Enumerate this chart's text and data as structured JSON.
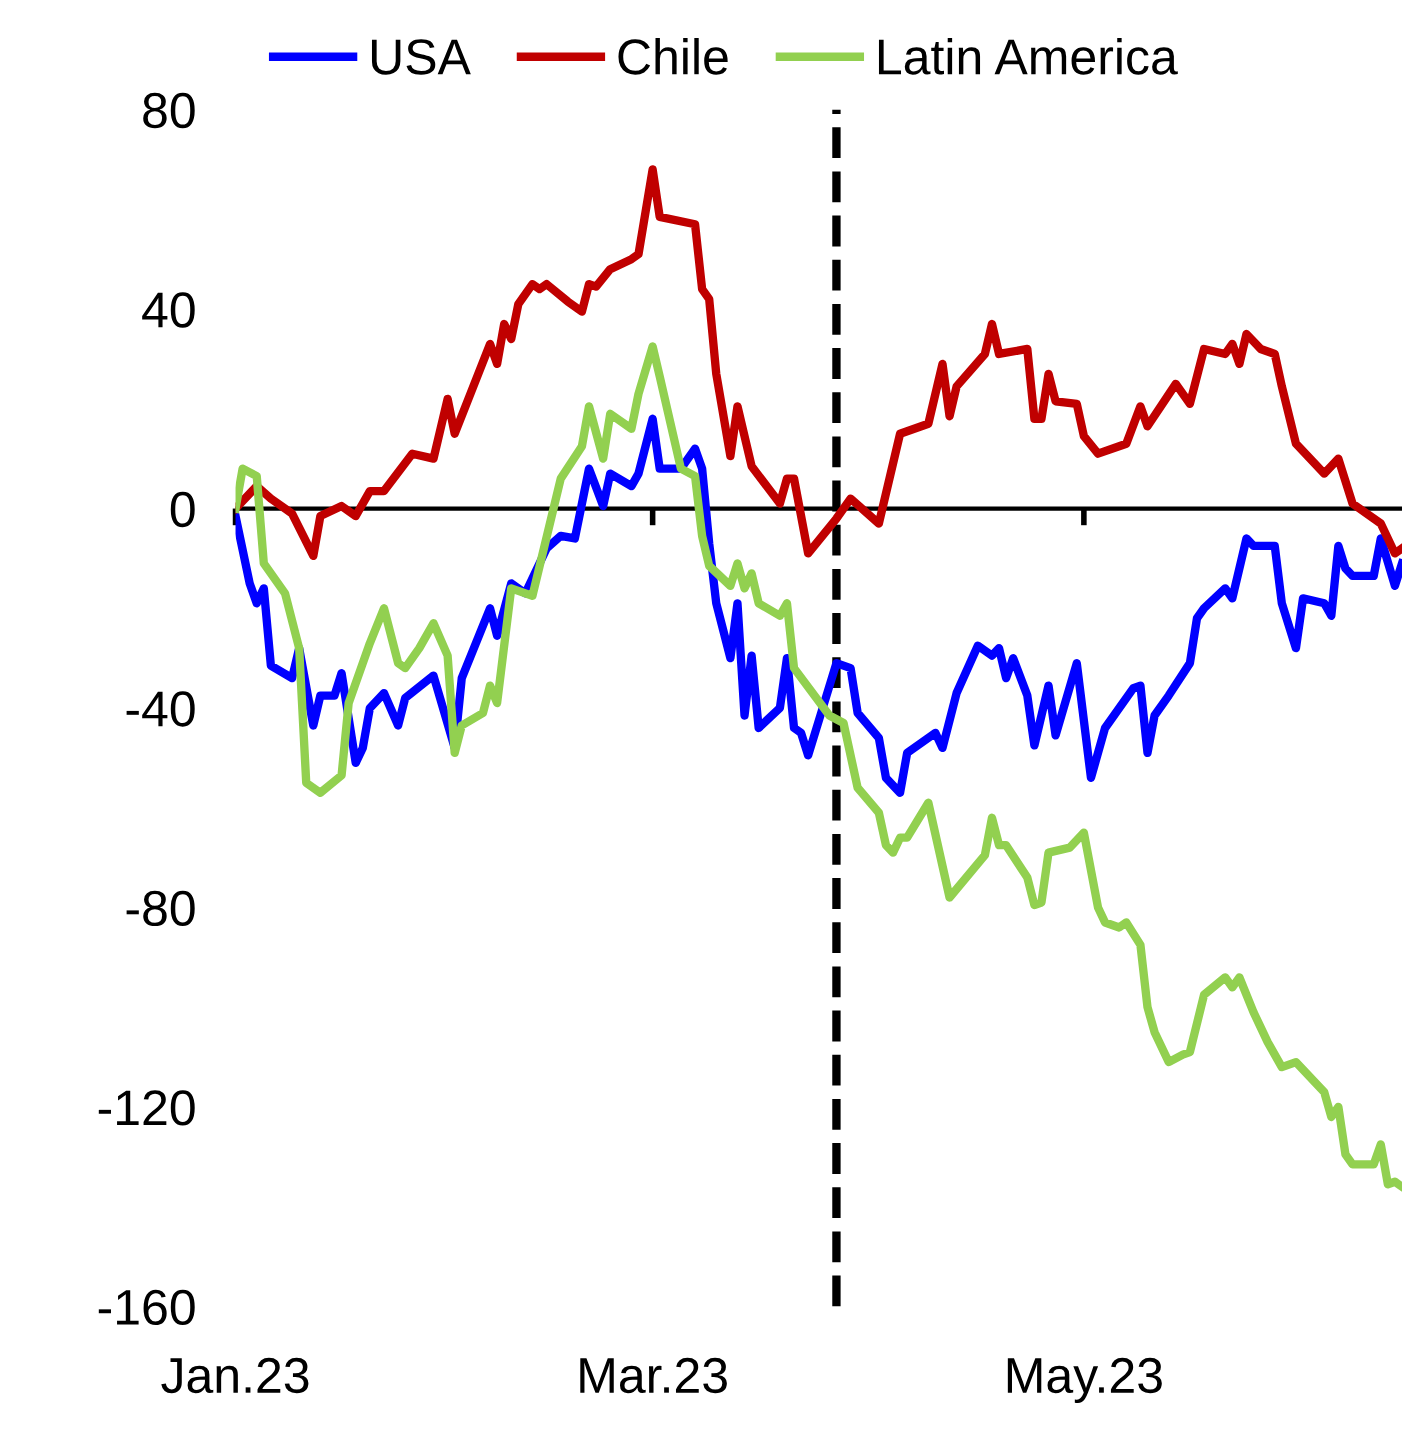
{
  "chart_data": {
    "type": "line",
    "series": [
      {
        "name": "USA",
        "color": "#0000ff",
        "x": [
          "2023-01-01",
          "2023-01-03",
          "2023-01-04",
          "2023-01-05",
          "2023-01-06",
          "2023-01-09",
          "2023-01-10",
          "2023-01-12",
          "2023-01-13",
          "2023-01-15",
          "2023-01-16",
          "2023-01-18",
          "2023-01-19",
          "2023-01-20",
          "2023-01-22",
          "2023-01-24",
          "2023-01-25",
          "2023-01-29",
          "2023-02-01",
          "2023-02-02",
          "2023-02-06",
          "2023-02-07",
          "2023-02-09",
          "2023-02-11",
          "2023-02-14",
          "2023-02-16",
          "2023-02-18",
          "2023-02-20",
          "2023-02-22",
          "2023-02-23",
          "2023-02-26",
          "2023-02-27",
          "2023-03-01",
          "2023-03-02",
          "2023-03-05",
          "2023-03-07",
          "2023-03-08",
          "2023-03-09",
          "2023-03-10",
          "2023-03-12",
          "2023-03-13",
          "2023-03-14",
          "2023-03-15",
          "2023-03-16",
          "2023-03-19",
          "2023-03-20",
          "2023-03-21",
          "2023-03-22",
          "2023-03-23",
          "2023-03-27",
          "2023-03-29",
          "2023-03-30",
          "2023-04-02",
          "2023-04-03",
          "2023-04-05",
          "2023-04-06",
          "2023-04-10",
          "2023-04-11",
          "2023-04-13",
          "2023-04-16",
          "2023-04-18",
          "2023-04-19",
          "2023-04-20",
          "2023-04-21",
          "2023-04-23",
          "2023-04-24",
          "2023-04-26",
          "2023-04-27",
          "2023-04-30",
          "2023-05-02",
          "2023-05-04",
          "2023-05-08",
          "2023-05-09",
          "2023-05-10",
          "2023-05-11",
          "2023-05-13",
          "2023-05-16",
          "2023-05-17",
          "2023-05-18",
          "2023-05-21",
          "2023-05-22",
          "2023-05-24",
          "2023-05-25",
          "2023-05-28",
          "2023-05-29",
          "2023-05-31",
          "2023-06-01",
          "2023-06-04",
          "2023-06-05",
          "2023-06-06",
          "2023-06-07",
          "2023-06-08",
          "2023-06-11",
          "2023-06-12",
          "2023-06-14",
          "2023-06-15"
        ],
        "values": [
          -1.5,
          -15,
          -19,
          -16,
          -31.5,
          -34,
          -28,
          -43.5,
          -37.5,
          -37.5,
          -33,
          -51,
          -48,
          -40,
          -37,
          -43.5,
          -38,
          -33.5,
          -48,
          -34,
          -20,
          -25.5,
          -15,
          -17,
          -8,
          -5.5,
          -6,
          8,
          0.5,
          7,
          4.5,
          7,
          18,
          8,
          8,
          12,
          8,
          -7,
          -19,
          -30,
          -19,
          -41.5,
          -29.5,
          -44,
          -40,
          -30,
          -44,
          -45,
          -49.5,
          -31,
          -32,
          -41,
          -46,
          -54,
          -57,
          -49,
          -45,
          -48,
          -37,
          -27.5,
          -29.5,
          -28,
          -34,
          -30,
          -37.5,
          -47.5,
          -35.5,
          -45.5,
          -31,
          -54,
          -44,
          -36,
          -35.5,
          -49,
          -41.5,
          -37.5,
          -31,
          -22,
          -20,
          -16,
          -18,
          -6,
          -7.5,
          -7.5,
          -19,
          -28,
          -18,
          -19,
          -21.5,
          -7.5,
          -12,
          -13.5,
          -13.5,
          -6,
          -15.5,
          -11
        ]
      },
      {
        "name": "Chile",
        "color": "#c00000",
        "x": [
          "2023-01-01",
          "2023-01-04",
          "2023-01-06",
          "2023-01-09",
          "2023-01-12",
          "2023-01-13",
          "2023-01-16",
          "2023-01-18",
          "2023-01-20",
          "2023-01-22",
          "2023-01-26",
          "2023-01-29",
          "2023-01-31",
          "2023-02-01",
          "2023-02-06",
          "2023-02-07",
          "2023-02-08",
          "2023-02-09",
          "2023-02-10",
          "2023-02-12",
          "2023-02-13",
          "2023-02-14",
          "2023-02-17",
          "2023-02-19",
          "2023-02-20",
          "2023-02-21",
          "2023-02-23",
          "2023-02-26",
          "2023-02-27",
          "2023-03-01",
          "2023-03-02",
          "2023-03-07",
          "2023-03-08",
          "2023-03-09",
          "2023-03-10",
          "2023-03-12",
          "2023-03-13",
          "2023-03-15",
          "2023-03-19",
          "2023-03-20",
          "2023-03-21",
          "2023-03-23",
          "2023-03-27",
          "2023-03-29",
          "2023-04-02",
          "2023-04-05",
          "2023-04-09",
          "2023-04-11",
          "2023-04-12",
          "2023-04-13",
          "2023-04-17",
          "2023-04-18",
          "2023-04-19",
          "2023-04-23",
          "2023-04-24",
          "2023-04-25",
          "2023-04-26",
          "2023-04-27",
          "2023-04-30",
          "2023-05-01",
          "2023-05-03",
          "2023-05-07",
          "2023-05-09",
          "2023-05-10",
          "2023-05-14",
          "2023-05-16",
          "2023-05-18",
          "2023-05-21",
          "2023-05-22",
          "2023-05-23",
          "2023-05-24",
          "2023-05-26",
          "2023-05-28",
          "2023-05-29",
          "2023-05-31",
          "2023-06-02",
          "2023-06-04",
          "2023-06-06",
          "2023-06-08",
          "2023-06-12",
          "2023-06-14",
          "2023-06-15"
        ],
        "values": [
          0,
          4.5,
          2,
          -1,
          -9.5,
          -1.5,
          0.5,
          -1.5,
          3.5,
          3.5,
          11,
          10,
          22,
          15,
          33,
          29,
          37,
          34,
          41,
          45,
          44,
          45,
          41.5,
          39.5,
          45,
          44.5,
          48,
          50,
          51,
          68,
          58.5,
          57,
          44,
          42,
          27,
          10.5,
          20.5,
          8.5,
          1,
          6,
          6,
          -9,
          -2,
          2,
          -3,
          15,
          17,
          29,
          18.5,
          24.5,
          31,
          37,
          31,
          32,
          18,
          18,
          27,
          21.5,
          21,
          14.5,
          11,
          13,
          20.5,
          16.5,
          25,
          21,
          32,
          31,
          33,
          29,
          35,
          32,
          31,
          24.5,
          13,
          10,
          7,
          10,
          1,
          -3,
          -9,
          -8
        ]
      },
      {
        "name": "Latin America",
        "color": "#92d050",
        "x": [
          "2023-01-01",
          "2023-01-02",
          "2023-01-04",
          "2023-01-05",
          "2023-01-08",
          "2023-01-10",
          "2023-01-11",
          "2023-01-13",
          "2023-01-16",
          "2023-01-17",
          "2023-01-20",
          "2023-01-22",
          "2023-01-24",
          "2023-01-25",
          "2023-01-27",
          "2023-01-29",
          "2023-01-31",
          "2023-02-01",
          "2023-02-02",
          "2023-02-05",
          "2023-02-06",
          "2023-02-07",
          "2023-02-09",
          "2023-02-12",
          "2023-02-16",
          "2023-02-19",
          "2023-02-20",
          "2023-02-22",
          "2023-02-23",
          "2023-02-26",
          "2023-02-27",
          "2023-03-01",
          "2023-03-02",
          "2023-03-05",
          "2023-03-07",
          "2023-03-08",
          "2023-03-09",
          "2023-03-12",
          "2023-03-13",
          "2023-03-14",
          "2023-03-15",
          "2023-03-16",
          "2023-03-19",
          "2023-03-20",
          "2023-03-21",
          "2023-03-26",
          "2023-03-28",
          "2023-03-30",
          "2023-04-02",
          "2023-04-03",
          "2023-04-04",
          "2023-04-05",
          "2023-04-06",
          "2023-04-09",
          "2023-04-12",
          "2023-04-17",
          "2023-04-18",
          "2023-04-19",
          "2023-04-20",
          "2023-04-23",
          "2023-04-24",
          "2023-04-25",
          "2023-04-26",
          "2023-04-29",
          "2023-05-01",
          "2023-05-03",
          "2023-05-04",
          "2023-05-06",
          "2023-05-07",
          "2023-05-09",
          "2023-05-10",
          "2023-05-11",
          "2023-05-13",
          "2023-05-15",
          "2023-05-16",
          "2023-05-18",
          "2023-05-21",
          "2023-05-22",
          "2023-05-23",
          "2023-05-25",
          "2023-05-27",
          "2023-05-29",
          "2023-05-31",
          "2023-06-02",
          "2023-06-04",
          "2023-06-05",
          "2023-06-06",
          "2023-06-07",
          "2023-06-08",
          "2023-06-11",
          "2023-06-12",
          "2023-06-13",
          "2023-06-14",
          "2023-06-15"
        ],
        "values": [
          0,
          8,
          6.5,
          -11,
          -17,
          -28,
          -55,
          -57,
          -53.5,
          -39,
          -27,
          -20,
          -31,
          -32,
          -28,
          -23,
          -29.5,
          -49,
          -43.5,
          -41,
          -35.5,
          -39,
          -16,
          -17.5,
          6,
          12.5,
          20.5,
          10,
          19,
          16,
          23,
          32.5,
          26.5,
          8,
          6.5,
          -5.5,
          -11.5,
          -15.5,
          -11,
          -16,
          -13,
          -19,
          -21.5,
          -19,
          -32,
          -41.5,
          -43,
          -56,
          -61,
          -67.5,
          -69,
          -66,
          -66,
          -59,
          -78,
          -69.5,
          -62,
          -67.5,
          -67.5,
          -74,
          -79.5,
          -79,
          -69,
          -68,
          -65,
          -80,
          -83,
          -84,
          -83,
          -87.5,
          -100,
          -105,
          -111,
          -109.5,
          -109,
          -97.5,
          -94,
          -96,
          -94,
          -101,
          -107,
          -112,
          -111,
          -114,
          -117,
          -122,
          -120,
          -129.5,
          -131.5,
          -131.5,
          -127.5,
          -135.5,
          -135,
          -136
        ]
      }
    ],
    "xlim": [
      "2023-01-01",
      "2023-06-15"
    ],
    "xticks": [
      {
        "value": "2023-01-01",
        "label": "Jan.23"
      },
      {
        "value": "2023-03-01",
        "label": "Mar.23"
      },
      {
        "value": "2023-05-01",
        "label": "May.23"
      }
    ],
    "ylim": [
      -160,
      80
    ],
    "yticks": [
      -160,
      -120,
      -80,
      -40,
      0,
      40,
      80
    ],
    "ref_lines": [
      {
        "axis": "x",
        "value": "2023-03-27",
        "color": "#000000",
        "line_style": "dashed"
      },
      {
        "axis": "y",
        "value": 0,
        "color": "#000000",
        "line_style": "solid"
      }
    ],
    "legend": "top",
    "grid": false,
    "line_style": "solid",
    "marker": "none"
  }
}
